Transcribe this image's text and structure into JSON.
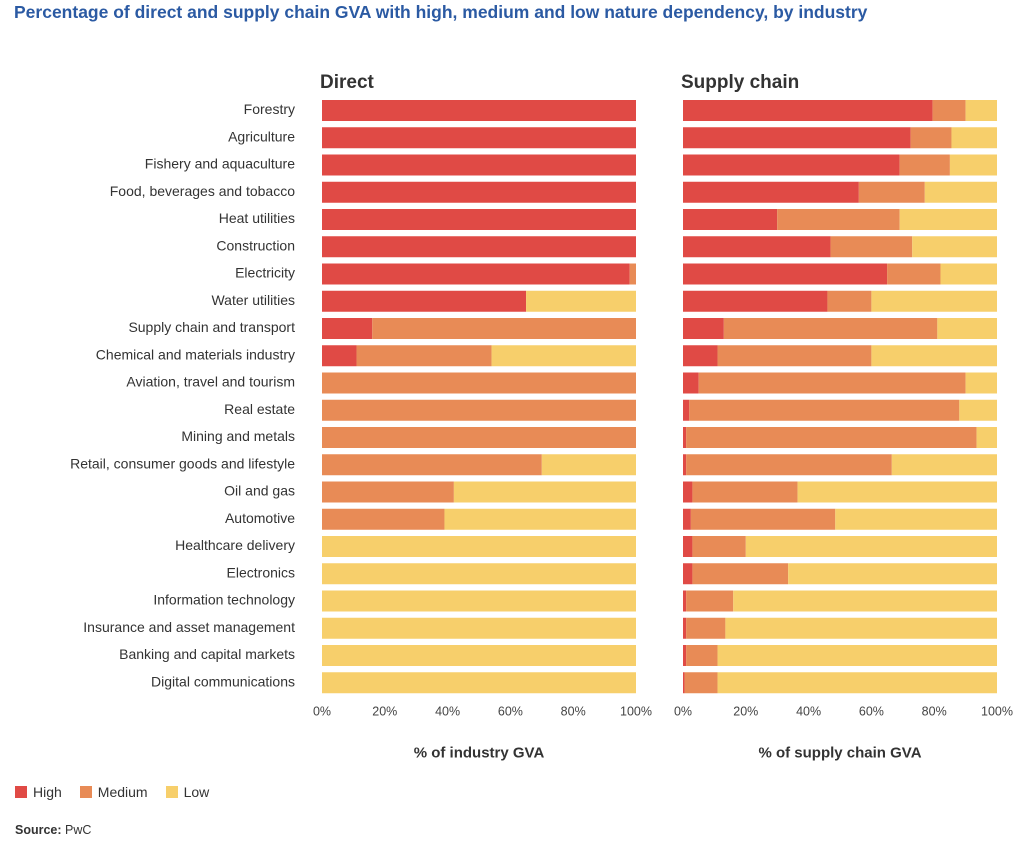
{
  "title": "Percentage of direct and supply chain GVA with high, medium and low nature dependency, by industry",
  "colors": {
    "High": "#e04a45",
    "Medium": "#e88b56",
    "Low": "#f7cf6b"
  },
  "source": {
    "label": "Source:",
    "text": "PwC"
  },
  "chart_data": [
    {
      "type": "bar",
      "orientation": "horizontal",
      "stacked": true,
      "title": "Direct",
      "xlabel": "% of industry GVA",
      "xlim": [
        0,
        100
      ],
      "xticks": [
        "0%",
        "20%",
        "40%",
        "60%",
        "80%",
        "100%"
      ],
      "categories": [
        "Forestry",
        "Agriculture",
        "Fishery and aquaculture",
        "Food, beverages and tobacco",
        "Heat utilities",
        "Construction",
        "Electricity",
        "Water utilities",
        "Supply chain and transport",
        "Chemical and materials industry",
        "Aviation, travel and tourism",
        "Real estate",
        "Mining and metals",
        "Retail, consumer goods and lifestyle",
        "Oil and gas",
        "Automotive",
        "Healthcare delivery",
        "Electronics",
        "Information technology",
        "Insurance and asset management",
        "Banking and capital markets",
        "Digital communications"
      ],
      "series": [
        {
          "name": "High",
          "values": [
            100,
            100,
            100,
            100,
            100,
            100,
            98,
            65,
            16,
            11,
            0,
            0,
            0,
            0,
            0,
            0,
            0,
            0,
            0,
            0,
            0,
            0
          ]
        },
        {
          "name": "Medium",
          "values": [
            0,
            0,
            0,
            0,
            0,
            0,
            2,
            0,
            84,
            43,
            100,
            100,
            100,
            70,
            42,
            39,
            0,
            0,
            0,
            0,
            0,
            0
          ]
        },
        {
          "name": "Low",
          "values": [
            0,
            0,
            0,
            0,
            0,
            0,
            0,
            35,
            0,
            46,
            0,
            0,
            0,
            30,
            58,
            61,
            100,
            100,
            100,
            100,
            100,
            100
          ]
        }
      ]
    },
    {
      "type": "bar",
      "orientation": "horizontal",
      "stacked": true,
      "title": "Supply chain",
      "xlabel": "% of supply chain GVA",
      "xlim": [
        0,
        100
      ],
      "xticks": [
        "0%",
        "20%",
        "40%",
        "60%",
        "80%",
        "100%"
      ],
      "categories": [
        "Forestry",
        "Agriculture",
        "Fishery and aquaculture",
        "Food, beverages and tobacco",
        "Heat utilities",
        "Construction",
        "Electricity",
        "Water utilities",
        "Supply chain and transport",
        "Chemical and materials industry",
        "Aviation, travel and tourism",
        "Real estate",
        "Mining and metals",
        "Retail, consumer goods and lifestyle",
        "Oil and gas",
        "Automotive",
        "Healthcare delivery",
        "Electronics",
        "Information technology",
        "Insurance and asset management",
        "Banking and capital markets",
        "Digital communications"
      ],
      "series": [
        {
          "name": "High",
          "values": [
            79.5,
            72.5,
            69,
            56,
            30,
            47,
            65,
            46,
            13,
            11,
            5,
            2,
            1,
            1,
            3,
            2.5,
            3,
            3,
            1,
            1,
            1,
            0.5
          ]
        },
        {
          "name": "Medium",
          "values": [
            10.5,
            13,
            16,
            21,
            39,
            26,
            17,
            14,
            68,
            49,
            85,
            86,
            92.5,
            65.5,
            33.5,
            46,
            17,
            30.5,
            15,
            12.5,
            10,
            10.5
          ]
        },
        {
          "name": "Low",
          "values": [
            10,
            14.5,
            15,
            23,
            31,
            27,
            18,
            40,
            19,
            40,
            10,
            12,
            6.5,
            33.5,
            63.5,
            51.5,
            80,
            66.5,
            84,
            86.5,
            89,
            89
          ]
        }
      ]
    }
  ],
  "legend": [
    "High",
    "Medium",
    "Low"
  ]
}
